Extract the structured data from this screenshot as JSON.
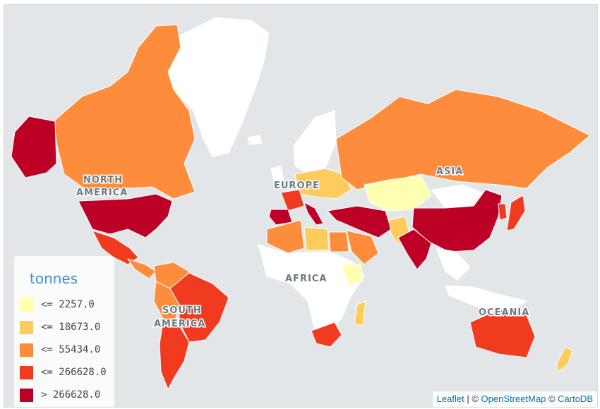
{
  "colors": {
    "class1": "#ffffb2",
    "class2": "#fecc5c",
    "class3": "#fd8d3c",
    "class4": "#f03b20",
    "class5": "#bd0026",
    "nodata": "#ffffff",
    "water": "#e3e6e8"
  },
  "continents": {
    "north_america_1": "NORTH",
    "north_america_2": "AMERICA",
    "south_america_1": "SOUTH",
    "south_america_2": "AMERICA",
    "europe": "EUROPE",
    "africa": "AFRICA",
    "asia": "ASIA",
    "oceania": "OCEANIA"
  },
  "legend": {
    "title": "tonnes",
    "items": [
      {
        "label": "<= 2257.0",
        "color": "#ffffb2"
      },
      {
        "label": "<= 18673.0",
        "color": "#fecc5c"
      },
      {
        "label": "<= 55434.0",
        "color": "#fd8d3c"
      },
      {
        "label": "<= 266628.0",
        "color": "#f03b20"
      },
      {
        "label": "> 266628.0",
        "color": "#bd0026"
      }
    ]
  },
  "attribution": {
    "leaflet": "Leaflet",
    "sep": " | © ",
    "osm": "OpenStreetMap",
    "sep2": " © ",
    "carto": "CartoDB"
  },
  "regions": [
    {
      "name": "greenland",
      "cls": "nodata"
    },
    {
      "name": "canada",
      "cls": "class3"
    },
    {
      "name": "alaska",
      "cls": "class5"
    },
    {
      "name": "usa",
      "cls": "class5"
    },
    {
      "name": "mexico",
      "cls": "class4"
    },
    {
      "name": "central-america",
      "cls": "class3"
    },
    {
      "name": "colombia-venezuela",
      "cls": "class3"
    },
    {
      "name": "brazil",
      "cls": "class4"
    },
    {
      "name": "peru-bolivia",
      "cls": "class3"
    },
    {
      "name": "chile-argentina",
      "cls": "class4"
    },
    {
      "name": "scandinavia",
      "cls": "nodata"
    },
    {
      "name": "western-europe",
      "cls": "class2"
    },
    {
      "name": "france",
      "cls": "class4"
    },
    {
      "name": "iberia",
      "cls": "class5"
    },
    {
      "name": "italy",
      "cls": "class5"
    },
    {
      "name": "russia",
      "cls": "class3"
    },
    {
      "name": "kazakhstan",
      "cls": "class1"
    },
    {
      "name": "mongolia",
      "cls": "nodata"
    },
    {
      "name": "china",
      "cls": "class5"
    },
    {
      "name": "turkey-iran",
      "cls": "class5"
    },
    {
      "name": "arabia",
      "cls": "class3"
    },
    {
      "name": "pakistan",
      "cls": "class2"
    },
    {
      "name": "india",
      "cls": "class5"
    },
    {
      "name": "southeast-asia",
      "cls": "nodata"
    },
    {
      "name": "japan",
      "cls": "class4"
    },
    {
      "name": "korea",
      "cls": "class4"
    },
    {
      "name": "north-africa-west",
      "cls": "class3"
    },
    {
      "name": "libya",
      "cls": "class2"
    },
    {
      "name": "egypt",
      "cls": "class3"
    },
    {
      "name": "sub-saharan-africa",
      "cls": "nodata"
    },
    {
      "name": "ethiopia",
      "cls": "class1"
    },
    {
      "name": "south-africa",
      "cls": "class4"
    },
    {
      "name": "madagascar",
      "cls": "class2"
    },
    {
      "name": "indonesia",
      "cls": "nodata"
    },
    {
      "name": "australia",
      "cls": "class4"
    },
    {
      "name": "new-zealand",
      "cls": "class2"
    },
    {
      "name": "uk-iceland",
      "cls": "nodata"
    }
  ]
}
